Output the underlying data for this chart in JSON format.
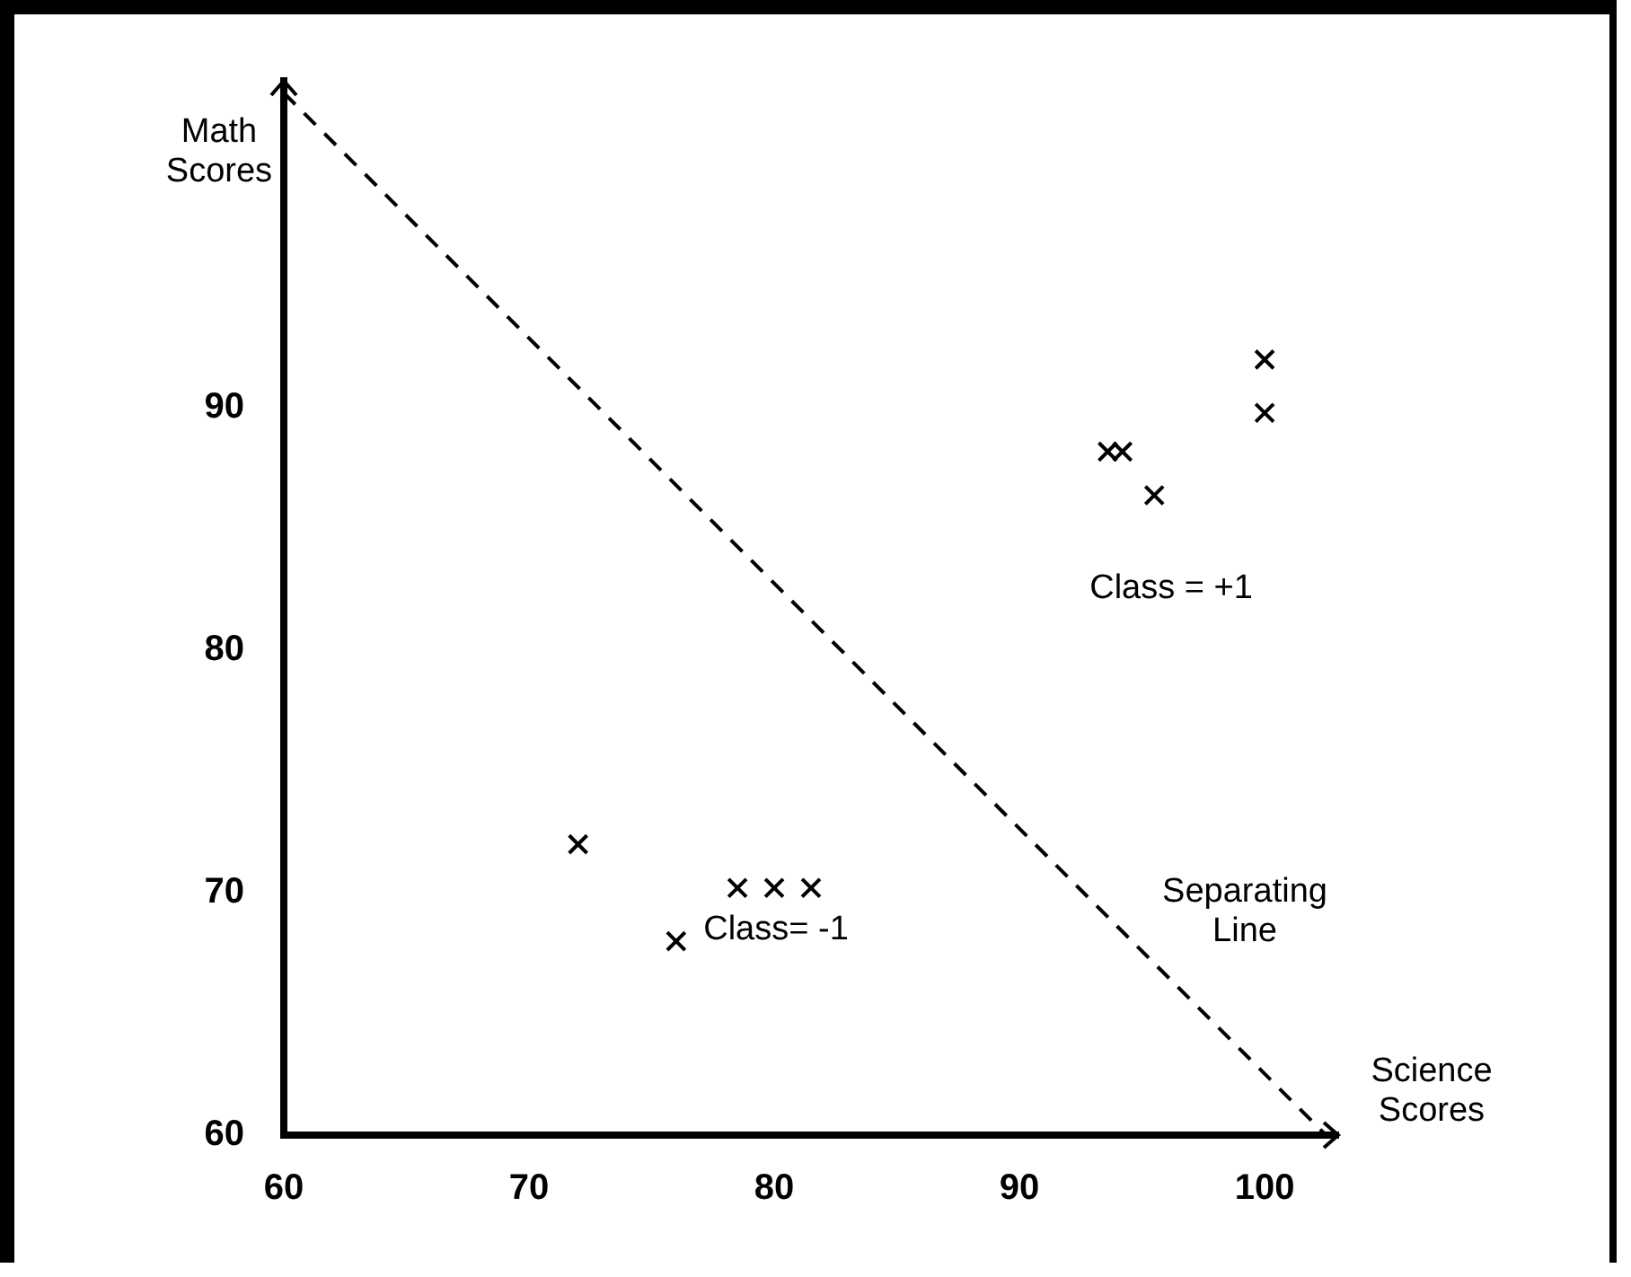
{
  "chart_data": {
    "type": "scatter",
    "xlabel": "Science Scores",
    "ylabel": "Math Scores",
    "xlim": [
      60,
      103
    ],
    "ylim": [
      60,
      103.5
    ],
    "xticks": [
      60,
      70,
      80,
      90,
      100
    ],
    "yticks": [
      60,
      70,
      80,
      90
    ],
    "grid": false,
    "legend": false,
    "marker": "cross",
    "series": [
      {
        "color": "#000000",
        "x": [
          72,
          76,
          78.5,
          80,
          81.5,
          93.6,
          94.2,
          95.5,
          100,
          100
        ],
        "values": [
          72,
          68,
          70.2,
          70.2,
          70.2,
          88.2,
          88.2,
          86.4,
          92,
          89.8
        ]
      },
      {
        "type": "line",
        "line_style": "dashed",
        "color": "#000000",
        "x": [
          60,
          102.5
        ],
        "values": [
          103,
          60
        ]
      }
    ],
    "annotations": [
      "Class = +1",
      "Class= -1",
      "Separating Line"
    ]
  }
}
